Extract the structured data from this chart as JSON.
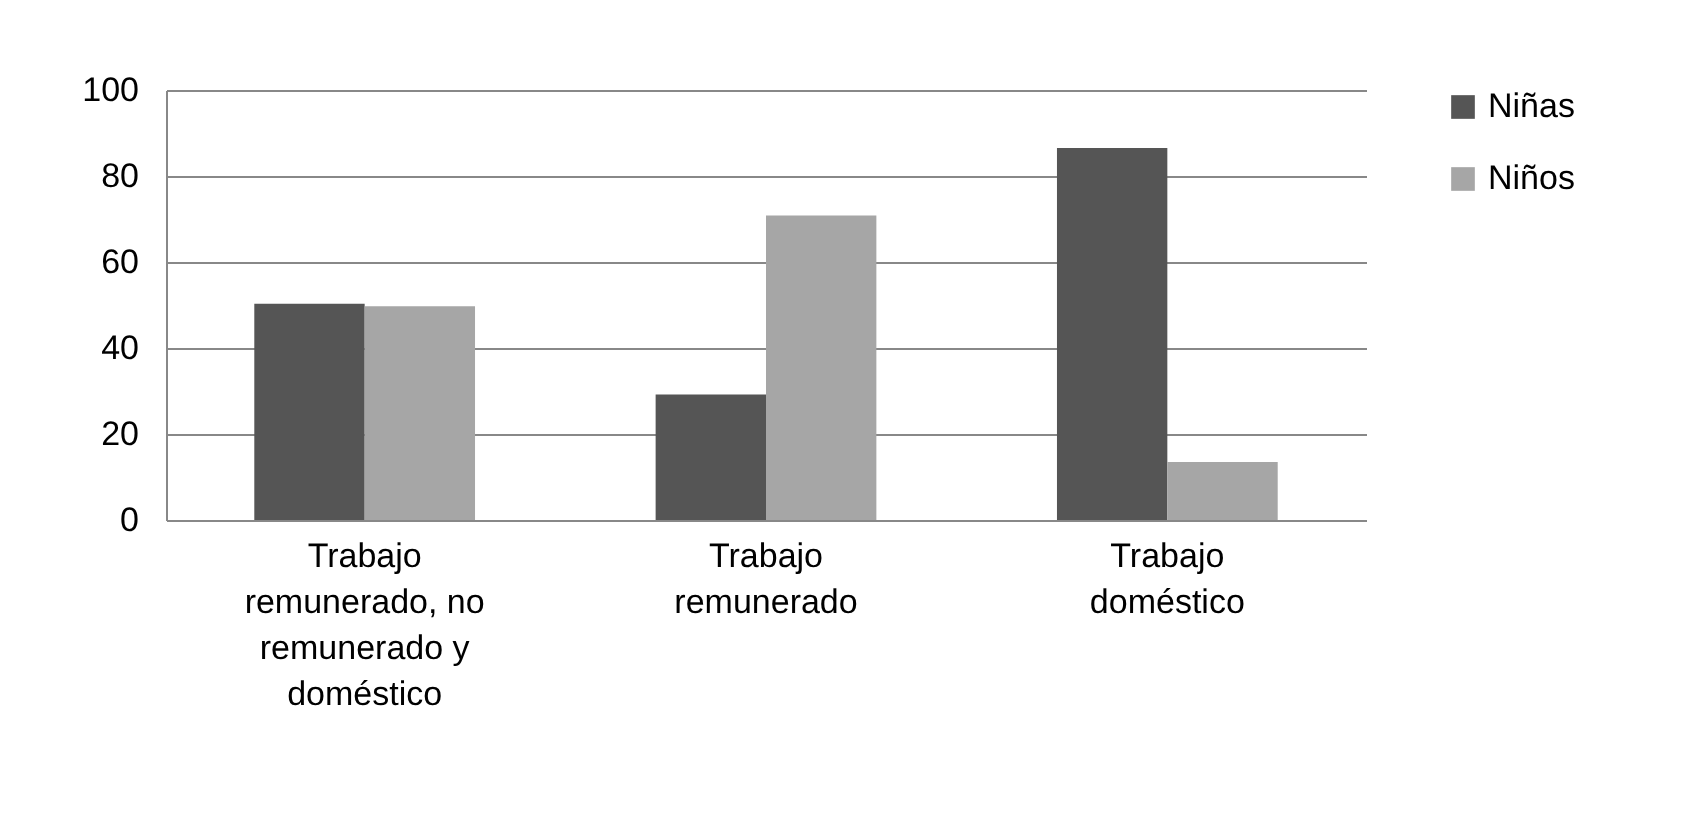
{
  "chart_data": {
    "type": "bar",
    "categories": [
      "Trabajo remunerado, no remunerado y doméstico",
      "Trabajo remunerado",
      "Trabajo doméstico"
    ],
    "series": [
      {
        "name": "Niñas",
        "color": "#555555",
        "values": [
          50.3,
          29.2,
          86.5
        ]
      },
      {
        "name": "Niños",
        "color": "#a6a6a6",
        "values": [
          49.7,
          70.8,
          13.5
        ]
      }
    ],
    "ylim": [
      0,
      100
    ],
    "yticks": [
      0,
      20,
      40,
      60,
      80,
      100
    ],
    "grid": "y",
    "legend": "right"
  }
}
